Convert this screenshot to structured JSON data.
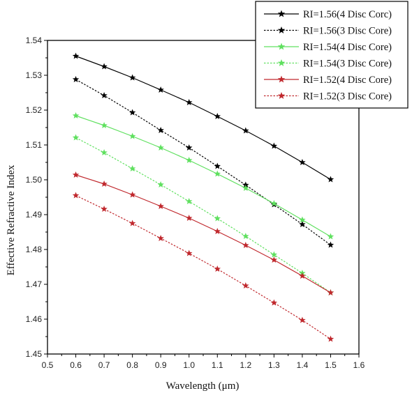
{
  "chart_data": {
    "type": "line",
    "title": "",
    "xlabel": "Wavelength (μm)",
    "ylabel": "Effective Refractive Index",
    "xlim": [
      0.5,
      1.6
    ],
    "ylim": [
      1.45,
      1.54
    ],
    "xticks": [
      "0.5",
      "0.6",
      "0.7",
      "0.8",
      "0.9",
      "1.0",
      "1.1",
      "1.2",
      "1.3",
      "1.4",
      "1.5",
      "1.6"
    ],
    "yticks": [
      "1.45",
      "1.46",
      "1.47",
      "1.48",
      "1.49",
      "1.50",
      "1.51",
      "1.52",
      "1.53",
      "1.54"
    ],
    "grid": false,
    "legend_position": "top-right",
    "x": [
      0.6,
      0.7,
      0.8,
      0.9,
      1.0,
      1.1,
      1.2,
      1.3,
      1.4,
      1.5
    ],
    "series": [
      {
        "name": "RI=1.56(4 Disc Corc)",
        "color": "#000000",
        "dash": "solid",
        "values": [
          1.5355,
          1.5325,
          1.5293,
          1.5258,
          1.5222,
          1.5182,
          1.5141,
          1.5097,
          1.505,
          1.5001
        ]
      },
      {
        "name": "RI=1.56(3 Disc Core)",
        "color": "#000000",
        "dash": "dotted",
        "values": [
          1.5288,
          1.5242,
          1.5193,
          1.5142,
          1.5092,
          1.5039,
          1.4985,
          1.4929,
          1.4872,
          1.4813
        ]
      },
      {
        "name": "RI=1.54(4 Disc Core)",
        "color": "#5fe05f",
        "dash": "solid",
        "values": [
          1.5184,
          1.5156,
          1.5125,
          1.5092,
          1.5056,
          1.5017,
          1.4976,
          1.4932,
          1.4885,
          1.4837
        ]
      },
      {
        "name": "RI=1.54(3 Disc Core)",
        "color": "#5fe05f",
        "dash": "dotted",
        "values": [
          1.5121,
          1.5078,
          1.5032,
          1.4986,
          1.4938,
          1.4889,
          1.4838,
          1.4785,
          1.4732,
          1.4676
        ]
      },
      {
        "name": "RI=1.52(4 Disc Core)",
        "color": "#c0282d",
        "dash": "solid",
        "values": [
          1.5014,
          1.4988,
          1.4957,
          1.4924,
          1.489,
          1.4852,
          1.4812,
          1.477,
          1.4724,
          1.4676
        ]
      },
      {
        "name": "RI=1.52(3 Disc Core)",
        "color": "#c0282d",
        "dash": "dotted",
        "values": [
          1.4955,
          1.4916,
          1.4875,
          1.4832,
          1.4789,
          1.4744,
          1.4696,
          1.4647,
          1.4597,
          1.4543
        ]
      }
    ]
  }
}
